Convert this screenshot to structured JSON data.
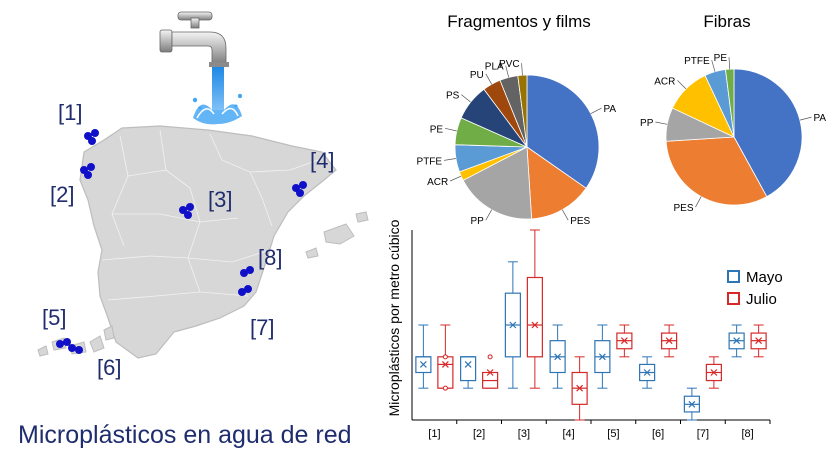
{
  "caption": "Microplásticos en agua de red",
  "map": {
    "site_labels": [
      "[1]",
      "[2]",
      "[3]",
      "[4]",
      "[5]",
      "[6]",
      "[7]",
      "[8]"
    ]
  },
  "colors": {
    "caption": "#1f2d6e",
    "map_land": "#d7d7d7",
    "markers": "#1010c8",
    "mayo": "#2e75b6",
    "julio": "#d62828"
  },
  "chart_data": [
    {
      "type": "pie",
      "title": "Fragmentos y films",
      "labels": [
        "PA",
        "PES",
        "PP",
        "ACR",
        "PTFE",
        "PE",
        "PS",
        "PU",
        "PLA",
        "PVC"
      ],
      "values": [
        34,
        14,
        18,
        2,
        6,
        6,
        8,
        4,
        4,
        2
      ],
      "colors": [
        "#4472c4",
        "#ed7d31",
        "#a5a5a5",
        "#ffc000",
        "#5b9bd5",
        "#70ad47",
        "#264478",
        "#9e480e",
        "#636363",
        "#997300"
      ]
    },
    {
      "type": "pie",
      "title": "Fibras",
      "labels": [
        "PA",
        "PES",
        "PP",
        "ACR",
        "PTFE",
        "PE"
      ],
      "values": [
        42,
        32,
        8,
        11,
        5,
        2
      ],
      "colors": [
        "#4472c4",
        "#ed7d31",
        "#a5a5a5",
        "#ffc000",
        "#5b9bd5",
        "#70ad47"
      ]
    },
    {
      "type": "box",
      "ylabel": "Microplásticos por metro cúbico",
      "categories": [
        "[1]",
        "[2]",
        "[3]",
        "[4]",
        "[5]",
        "[6]",
        "[7]",
        "[8]"
      ],
      "ylim": [
        0,
        40
      ],
      "legend": "right",
      "series": [
        {
          "name": "Mayo",
          "boxes": [
            {
              "min": 6.7,
              "q1": 10,
              "median": 13.3,
              "q3": 13.3,
              "max": 20,
              "mean": 11.7,
              "outliers": []
            },
            {
              "min": 6.7,
              "q1": 8.3,
              "median": 13.3,
              "q3": 13.3,
              "max": 13.3,
              "mean": 11.7,
              "outliers": []
            },
            {
              "min": 6.7,
              "q1": 13.3,
              "median": 20,
              "q3": 26.7,
              "max": 33.3,
              "mean": 20,
              "outliers": []
            },
            {
              "min": 6.7,
              "q1": 10,
              "median": 13.3,
              "q3": 16.7,
              "max": 20,
              "mean": 13.3,
              "outliers": []
            },
            {
              "min": 6.7,
              "q1": 10,
              "median": 13.3,
              "q3": 16.7,
              "max": 20,
              "mean": 13.3,
              "outliers": []
            },
            {
              "min": 6.7,
              "q1": 8.3,
              "median": 10,
              "q3": 11.7,
              "max": 13.3,
              "mean": 10,
              "outliers": []
            },
            {
              "min": 0,
              "q1": 1.7,
              "median": 3.3,
              "q3": 5,
              "max": 6.7,
              "mean": 3.3,
              "outliers": []
            },
            {
              "min": 13.3,
              "q1": 15,
              "median": 16.7,
              "q3": 18.3,
              "max": 20,
              "mean": 16.7,
              "outliers": []
            }
          ]
        },
        {
          "name": "Julio",
          "boxes": [
            {
              "min": 6.7,
              "q1": 6.7,
              "median": 11.7,
              "q3": 13.3,
              "max": 20,
              "mean": 11.7,
              "outliers": [
                13.3,
                6.7
              ]
            },
            {
              "min": 6.7,
              "q1": 6.7,
              "median": 8.3,
              "q3": 10,
              "max": 10,
              "mean": 10,
              "outliers": [
                13.3
              ]
            },
            {
              "min": 6.7,
              "q1": 13.3,
              "median": 20,
              "q3": 30,
              "max": 40,
              "mean": 20,
              "outliers": []
            },
            {
              "min": 0,
              "q1": 3.3,
              "median": 6.7,
              "q3": 10,
              "max": 13.3,
              "mean": 6.7,
              "outliers": []
            },
            {
              "min": 13.3,
              "q1": 15,
              "median": 16.7,
              "q3": 18.3,
              "max": 20,
              "mean": 16.7,
              "outliers": []
            },
            {
              "min": 13.3,
              "q1": 15,
              "median": 16.7,
              "q3": 18.3,
              "max": 20,
              "mean": 16.7,
              "outliers": []
            },
            {
              "min": 6.7,
              "q1": 8.3,
              "median": 10,
              "q3": 11.7,
              "max": 13.3,
              "mean": 10,
              "outliers": []
            },
            {
              "min": 13.3,
              "q1": 15,
              "median": 16.7,
              "q3": 18.3,
              "max": 20,
              "mean": 16.7,
              "outliers": []
            }
          ]
        }
      ]
    }
  ]
}
